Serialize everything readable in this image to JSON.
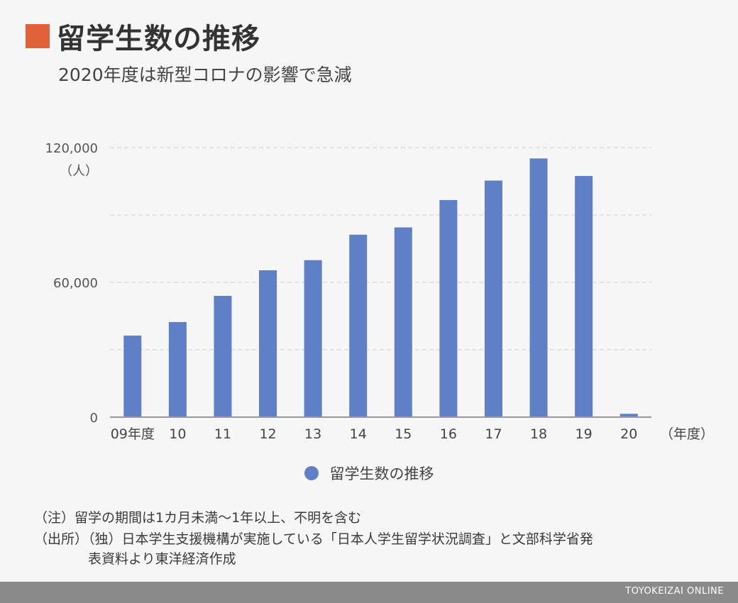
{
  "title": "留学生数の推移",
  "subtitle": "2020年度は新型コロナの影響で急減",
  "colors": {
    "accent": "#e0613a",
    "bar": "#5f7fc6",
    "axis": "#999999",
    "grid": "#d6d6d6"
  },
  "chart_data": {
    "type": "bar",
    "categories": [
      "09年度",
      "10",
      "11",
      "12",
      "13",
      "14",
      "15",
      "16",
      "17",
      "18",
      "19",
      "20"
    ],
    "series": [
      {
        "name": "留学生数の推移",
        "values": [
          36302,
          42320,
          53991,
          65373,
          69869,
          81219,
          84456,
          96641,
          105301,
          115146,
          107346,
          1487
        ]
      }
    ],
    "ylim": [
      0,
      120000
    ],
    "yticks": [
      {
        "value": 0,
        "label": "0"
      },
      {
        "value": 30000,
        "label": ""
      },
      {
        "value": 60000,
        "label": "60,000"
      },
      {
        "value": 90000,
        "label": ""
      },
      {
        "value": 120000,
        "label": "120,000"
      }
    ],
    "yunit": "（人）",
    "xunit": "（年度）",
    "grid": true,
    "legend_position": "bottom"
  },
  "notes": {
    "note1": "（注）留学の期間は1カ月未満〜1年以上、不明を含む",
    "note2": "（出所）（独）日本学生支援機構が実施している「日本人学生留学状況調査」と文部科学省発",
    "note3": "表資料より東洋経済作成"
  },
  "footer": {
    "brand": "TOYOKEIZAI ONLINE"
  }
}
